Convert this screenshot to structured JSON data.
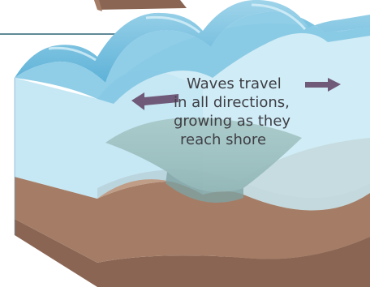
{
  "caption": {
    "lines": [
      "Waves travel",
      "in all directions,",
      "growing as they",
      "reach shore"
    ]
  },
  "colors": {
    "water_surface": "#7cc4e2",
    "water_front": "#b9e2f1",
    "earth_dark": "#8a6554",
    "earth_mid": "#a57d66",
    "earth_light": "#c9a88a",
    "arrow": "#6f5a7a",
    "callout_line": "#5f8a96"
  },
  "icons": {
    "left_arrow": "arrow-left-icon",
    "right_arrow": "arrow-right-icon"
  }
}
